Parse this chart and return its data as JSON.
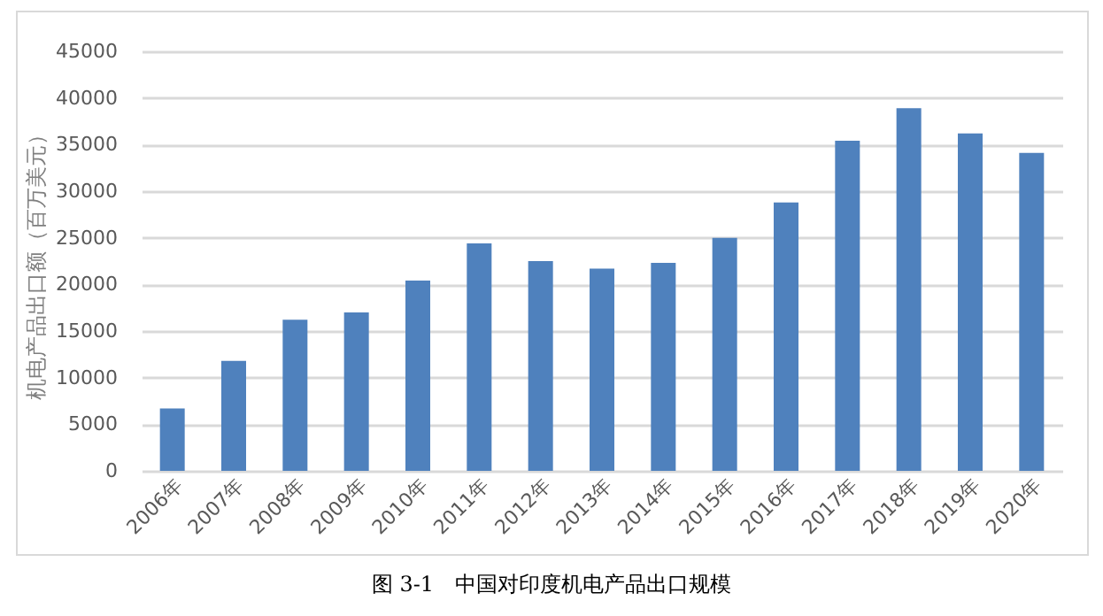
{
  "chart_data": {
    "type": "bar",
    "title": "图 3-1　中国对印度机电产品出口规模",
    "ylabel": "机电产品出口额（百万美元）",
    "categories": [
      "2006年",
      "2007年",
      "2008年",
      "2009年",
      "2010年",
      "2011年",
      "2012年",
      "2013年",
      "2014年",
      "2015年",
      "2016年",
      "2017年",
      "2018年",
      "2019年",
      "2020年"
    ],
    "values": [
      6700,
      11800,
      16200,
      17000,
      20400,
      24400,
      22500,
      21700,
      22300,
      25000,
      28800,
      35400,
      38900,
      36200,
      34100
    ],
    "color": "#4f81bd",
    "ylim": [
      0,
      45000
    ],
    "yticks": [
      0,
      5000,
      10000,
      15000,
      20000,
      25000,
      30000,
      35000,
      40000,
      45000
    ],
    "grid": "y"
  }
}
